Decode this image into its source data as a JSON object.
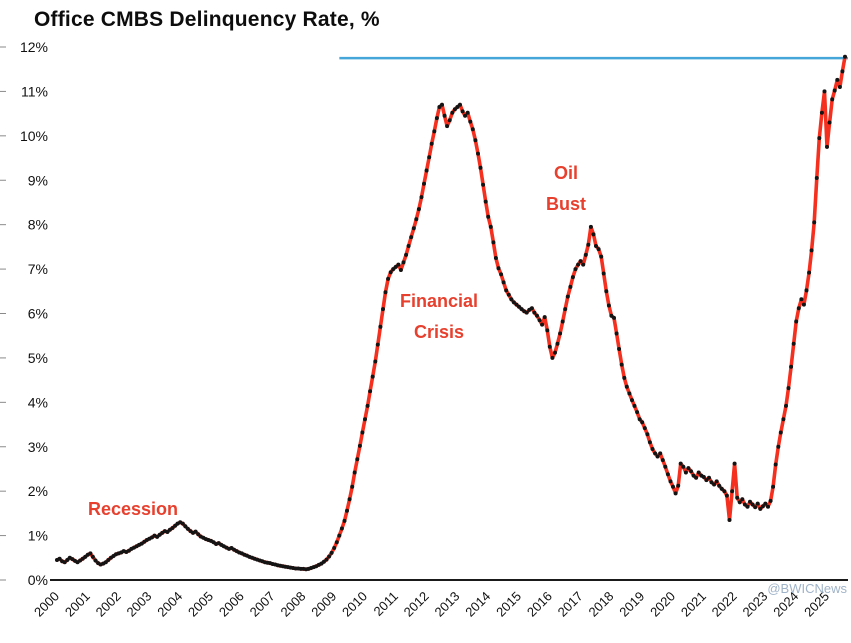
{
  "title": "Office CMBS Delinquency Rate, %",
  "watermark": "@BWICNews",
  "annotations": {
    "recession": {
      "text": "Recession"
    },
    "financial_crisis": {
      "line1": "Financial",
      "line2": "Crisis"
    },
    "oil_bust": {
      "line1": "Oil",
      "line2": "Bust"
    }
  },
  "colors": {
    "line": "#f5301e",
    "marker": "#141414",
    "annotation": "#e8402e",
    "reference_line": "#45a7d9",
    "axis": "#1a1a1a",
    "tick_text": "#111111",
    "watermark": "#9fb3c8"
  },
  "chart_data": {
    "type": "line",
    "title": "Office CMBS Delinquency Rate, %",
    "xlabel": "",
    "ylabel": "",
    "ylim": [
      0,
      12
    ],
    "grid": false,
    "legend": "none",
    "x_start_year": 2000,
    "points_per_year": 12,
    "x_tick_labels": [
      "2000",
      "2001",
      "2002",
      "2003",
      "2004",
      "2005",
      "2006",
      "2007",
      "2008",
      "2009",
      "2010",
      "2011",
      "2012",
      "2013",
      "2014",
      "2015",
      "2016",
      "2017",
      "2018",
      "2019",
      "2020",
      "2021",
      "2022",
      "2023",
      "2024",
      "2025"
    ],
    "y_tick_labels": [
      "0%",
      "1%",
      "2%",
      "3%",
      "4%",
      "5%",
      "6%",
      "7%",
      "8%",
      "9%",
      "10%",
      "11%",
      "12%"
    ],
    "reference_line": {
      "value": 11.75,
      "start_month_index": 110
    },
    "series": [
      {
        "name": "Office CMBS delinquency rate (%)",
        "values": [
          0.45,
          0.48,
          0.42,
          0.4,
          0.45,
          0.5,
          0.47,
          0.43,
          0.4,
          0.44,
          0.48,
          0.52,
          0.57,
          0.6,
          0.52,
          0.44,
          0.38,
          0.35,
          0.37,
          0.4,
          0.45,
          0.5,
          0.54,
          0.58,
          0.6,
          0.62,
          0.65,
          0.63,
          0.66,
          0.7,
          0.73,
          0.76,
          0.79,
          0.82,
          0.86,
          0.9,
          0.93,
          0.96,
          1.0,
          0.97,
          1.02,
          1.06,
          1.1,
          1.08,
          1.13,
          1.17,
          1.22,
          1.27,
          1.3,
          1.27,
          1.21,
          1.15,
          1.1,
          1.06,
          1.09,
          1.03,
          0.98,
          0.95,
          0.92,
          0.9,
          0.88,
          0.85,
          0.81,
          0.83,
          0.79,
          0.76,
          0.73,
          0.7,
          0.72,
          0.68,
          0.65,
          0.62,
          0.6,
          0.57,
          0.55,
          0.52,
          0.5,
          0.48,
          0.46,
          0.44,
          0.42,
          0.4,
          0.39,
          0.38,
          0.36,
          0.35,
          0.33,
          0.32,
          0.31,
          0.3,
          0.29,
          0.28,
          0.27,
          0.26,
          0.26,
          0.25,
          0.25,
          0.24,
          0.25,
          0.27,
          0.29,
          0.31,
          0.34,
          0.37,
          0.41,
          0.46,
          0.53,
          0.61,
          0.72,
          0.85,
          1.0,
          1.16,
          1.33,
          1.56,
          1.82,
          2.1,
          2.42,
          2.72,
          3.02,
          3.32,
          3.62,
          3.92,
          4.25,
          4.58,
          4.92,
          5.3,
          5.7,
          6.1,
          6.48,
          6.78,
          6.93,
          7.0,
          7.05,
          7.1,
          6.98,
          7.15,
          7.32,
          7.52,
          7.72,
          7.92,
          8.12,
          8.35,
          8.62,
          8.92,
          9.22,
          9.52,
          9.82,
          10.1,
          10.4,
          10.65,
          10.7,
          10.45,
          10.22,
          10.35,
          10.52,
          10.6,
          10.65,
          10.7,
          10.55,
          10.45,
          10.52,
          10.32,
          10.15,
          9.9,
          9.6,
          9.28,
          8.9,
          8.52,
          8.18,
          7.95,
          7.6,
          7.25,
          7.02,
          6.88,
          6.7,
          6.52,
          6.42,
          6.32,
          6.25,
          6.2,
          6.15,
          6.1,
          6.05,
          6.02,
          6.08,
          6.12,
          6.02,
          5.95,
          5.85,
          5.75,
          5.92,
          5.62,
          5.25,
          5.0,
          5.12,
          5.32,
          5.55,
          5.82,
          6.1,
          6.38,
          6.6,
          6.82,
          7.0,
          7.1,
          7.18,
          7.1,
          7.32,
          7.55,
          7.95,
          7.78,
          7.52,
          7.45,
          7.28,
          6.9,
          6.5,
          6.18,
          5.95,
          5.9,
          5.55,
          5.2,
          4.85,
          4.55,
          4.35,
          4.2,
          4.05,
          3.92,
          3.78,
          3.62,
          3.55,
          3.42,
          3.28,
          3.1,
          2.95,
          2.85,
          2.78,
          2.85,
          2.7,
          2.55,
          2.38,
          2.22,
          2.1,
          1.95,
          2.12,
          2.62,
          2.55,
          2.42,
          2.52,
          2.45,
          2.35,
          2.3,
          2.42,
          2.35,
          2.32,
          2.25,
          2.3,
          2.2,
          2.15,
          2.22,
          2.12,
          2.05,
          2.0,
          1.9,
          1.35,
          2.0,
          2.62,
          1.85,
          1.75,
          1.82,
          1.7,
          1.65,
          1.76,
          1.7,
          1.64,
          1.72,
          1.6,
          1.66,
          1.72,
          1.65,
          1.78,
          2.1,
          2.6,
          3.0,
          3.32,
          3.62,
          3.92,
          4.32,
          4.8,
          5.32,
          5.82,
          6.12,
          6.32,
          6.2,
          6.52,
          6.92,
          7.42,
          8.05,
          9.05,
          9.95,
          10.52,
          11.0,
          9.75,
          10.3,
          10.82,
          11.02,
          11.26,
          11.1,
          11.45,
          11.78
        ]
      }
    ]
  }
}
